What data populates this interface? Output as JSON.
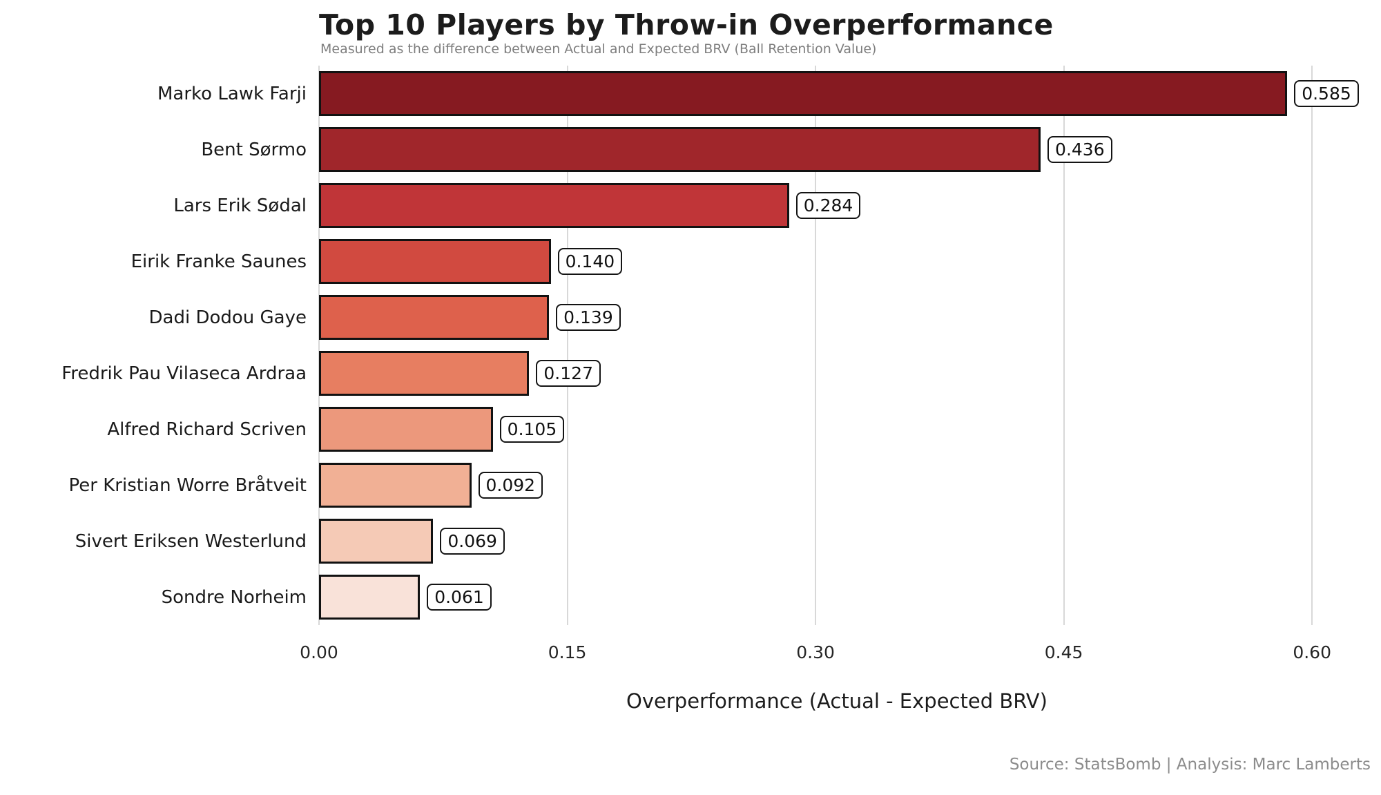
{
  "header": {
    "title": "Top 10 Players by Throw-in Overperformance",
    "subtitle": "Measured as the difference between Actual and Expected BRV (Ball Retention Value)"
  },
  "footer": {
    "source": "Source: StatsBomb | Analysis: Marc Lamberts"
  },
  "chart_data": {
    "type": "bar",
    "orientation": "horizontal",
    "title": "Top 10 Players by Throw-in Overperformance",
    "subtitle": "Measured as the difference between Actual and Expected BRV (Ball Retention Value)",
    "xlabel": "Overperformance (Actual - Expected BRV)",
    "ylabel": "",
    "xlim": [
      0,
      0.6258
    ],
    "x_ticks": [
      0.0,
      0.15,
      0.3,
      0.45,
      0.6
    ],
    "x_tick_labels": [
      "0.00",
      "0.15",
      "0.30",
      "0.45",
      "0.60"
    ],
    "grid": true,
    "legend": false,
    "categories": [
      "Marko Lawk Farji",
      "Bent Sørmo",
      "Lars Erik Sødal",
      "Eirik Franke Saunes",
      "Dadi Dodou Gaye",
      "Fredrik Pau Vilaseca Ardraa",
      "Alfred Richard Scriven",
      "Per Kristian Worre Bråtveit",
      "Sivert Eriksen Westerlund",
      "Sondre Norheim"
    ],
    "values": [
      0.585,
      0.436,
      0.284,
      0.14,
      0.139,
      0.127,
      0.105,
      0.092,
      0.069,
      0.061
    ],
    "value_labels": [
      "0.585",
      "0.436",
      "0.284",
      "0.140",
      "0.139",
      "0.127",
      "0.105",
      "0.092",
      "0.069",
      "0.061"
    ],
    "bar_colors": [
      "#861a21",
      "#a0262b",
      "#c03538",
      "#d14a40",
      "#de614c",
      "#e77e61",
      "#ec987c",
      "#f1b095",
      "#f5cab6",
      "#f9e2d9"
    ],
    "gridline_color": "#d8d8d8",
    "bar_edge_color": "#121212"
  }
}
